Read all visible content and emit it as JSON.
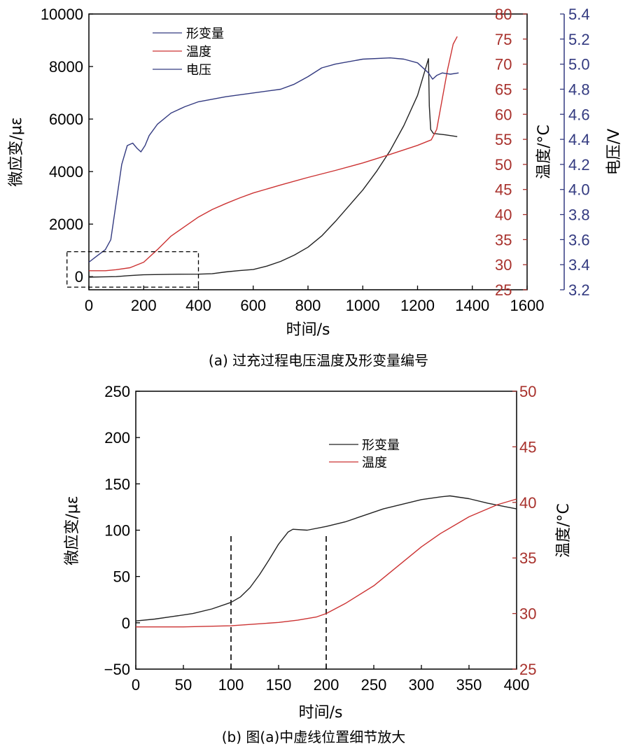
{
  "chart_data": [
    {
      "type": "line",
      "caption": "(a) 过充过程电压温度及形变量编号",
      "xlabel": "时间/s",
      "xlim": [
        0,
        1600
      ],
      "xticks": [
        0,
        200,
        400,
        600,
        800,
        1000,
        1200,
        1400,
        1600
      ],
      "y_left": {
        "label": "微应变/με",
        "lim": [
          -500,
          10000
        ],
        "ticks": [
          0,
          2000,
          4000,
          6000,
          8000,
          10000
        ],
        "color": "#000000"
      },
      "y_temp": {
        "label": "温度/°C",
        "lim": [
          25,
          80
        ],
        "ticks": [
          25,
          30,
          35,
          40,
          45,
          50,
          55,
          60,
          65,
          70,
          75,
          80
        ],
        "color": "#a8312c"
      },
      "y_volt": {
        "label": "电压/V",
        "lim": [
          3.2,
          5.4
        ],
        "ticks": [
          3.2,
          3.4,
          3.6,
          3.8,
          4.0,
          4.2,
          4.4,
          4.6,
          4.8,
          5.0,
          5.2,
          5.4
        ],
        "color": "#333a80"
      },
      "legend": [
        "形变量",
        "温度",
        "电压"
      ],
      "series": [
        {
          "name": "形变量",
          "axis": "strain",
          "color": "#222222",
          "points": [
            [
              0,
              -20
            ],
            [
              50,
              -10
            ],
            [
              100,
              0
            ],
            [
              150,
              40
            ],
            [
              200,
              70
            ],
            [
              300,
              90
            ],
            [
              400,
              95
            ],
            [
              450,
              110
            ],
            [
              500,
              180
            ],
            [
              550,
              230
            ],
            [
              600,
              270
            ],
            [
              650,
              400
            ],
            [
              700,
              580
            ],
            [
              750,
              820
            ],
            [
              800,
              1120
            ],
            [
              850,
              1550
            ],
            [
              900,
              2100
            ],
            [
              950,
              2700
            ],
            [
              1000,
              3300
            ],
            [
              1050,
              4000
            ],
            [
              1100,
              4800
            ],
            [
              1150,
              5750
            ],
            [
              1200,
              6900
            ],
            [
              1240,
              8300
            ],
            [
              1243,
              6500
            ],
            [
              1248,
              5600
            ],
            [
              1258,
              5450
            ],
            [
              1300,
              5400
            ],
            [
              1345,
              5330
            ]
          ]
        },
        {
          "name": "温度",
          "axis": "temp",
          "color": "#cc3333",
          "points": [
            [
              0,
              28.8
            ],
            [
              60,
              28.8
            ],
            [
              100,
              29
            ],
            [
              150,
              29.4
            ],
            [
              200,
              30.5
            ],
            [
              250,
              33
            ],
            [
              300,
              35.7
            ],
            [
              350,
              37.6
            ],
            [
              400,
              39.5
            ],
            [
              450,
              41
            ],
            [
              500,
              42.2
            ],
            [
              550,
              43.3
            ],
            [
              600,
              44.3
            ],
            [
              700,
              45.9
            ],
            [
              800,
              47.4
            ],
            [
              900,
              48.8
            ],
            [
              1000,
              50.3
            ],
            [
              1100,
              52
            ],
            [
              1200,
              53.8
            ],
            [
              1250,
              54.9
            ],
            [
              1270,
              57
            ],
            [
              1290,
              63
            ],
            [
              1310,
              69
            ],
            [
              1330,
              74
            ],
            [
              1345,
              75.5
            ]
          ]
        },
        {
          "name": "电压",
          "axis": "volt",
          "color": "#333a80",
          "points": [
            [
              0,
              3.42
            ],
            [
              30,
              3.47
            ],
            [
              60,
              3.52
            ],
            [
              80,
              3.6
            ],
            [
              100,
              3.9
            ],
            [
              120,
              4.2
            ],
            [
              140,
              4.35
            ],
            [
              160,
              4.37
            ],
            [
              175,
              4.33
            ],
            [
              190,
              4.3
            ],
            [
              205,
              4.35
            ],
            [
              220,
              4.43
            ],
            [
              250,
              4.52
            ],
            [
              300,
              4.61
            ],
            [
              350,
              4.66
            ],
            [
              400,
              4.7
            ],
            [
              500,
              4.74
            ],
            [
              600,
              4.77
            ],
            [
              700,
              4.8
            ],
            [
              750,
              4.84
            ],
            [
              800,
              4.9
            ],
            [
              850,
              4.97
            ],
            [
              900,
              5.0
            ],
            [
              1000,
              5.04
            ],
            [
              1100,
              5.05
            ],
            [
              1150,
              5.04
            ],
            [
              1200,
              5.01
            ],
            [
              1225,
              4.96
            ],
            [
              1240,
              4.93
            ],
            [
              1255,
              4.88
            ],
            [
              1270,
              4.91
            ],
            [
              1290,
              4.93
            ],
            [
              1320,
              4.92
            ],
            [
              1350,
              4.93
            ]
          ]
        }
      ],
      "inset_box": {
        "x": [
          -80,
          400
        ],
        "y": [
          -400,
          950
        ]
      }
    },
    {
      "type": "line",
      "caption": "(b) 图(a)中虚线位置细节放大",
      "xlabel": "时间/s",
      "xlim": [
        0,
        400
      ],
      "xticks": [
        0,
        50,
        100,
        150,
        200,
        250,
        300,
        350,
        400
      ],
      "y_left": {
        "label": "微应变/με",
        "lim": [
          -50,
          250
        ],
        "ticks": [
          -50,
          0,
          50,
          100,
          150,
          200,
          250
        ],
        "color": "#000000"
      },
      "y_temp": {
        "label": "温度/°C",
        "lim": [
          25,
          50
        ],
        "ticks": [
          25,
          30,
          35,
          40,
          45,
          50
        ],
        "color": "#a8312c"
      },
      "legend": [
        "形变量",
        "温度"
      ],
      "vlines": [
        {
          "x": 100,
          "y_top": 95
        },
        {
          "x": 200,
          "y_top": 97
        }
      ],
      "series": [
        {
          "name": "形变量",
          "axis": "strain",
          "color": "#222222",
          "points": [
            [
              0,
              2
            ],
            [
              20,
              4
            ],
            [
              40,
              7
            ],
            [
              60,
              10
            ],
            [
              80,
              15
            ],
            [
              100,
              22
            ],
            [
              110,
              28
            ],
            [
              120,
              38
            ],
            [
              130,
              52
            ],
            [
              140,
              68
            ],
            [
              150,
              85
            ],
            [
              160,
              98
            ],
            [
              165,
              101
            ],
            [
              180,
              100
            ],
            [
              200,
              104
            ],
            [
              220,
              109
            ],
            [
              240,
              116
            ],
            [
              260,
              123
            ],
            [
              280,
              128
            ],
            [
              300,
              133
            ],
            [
              320,
              136
            ],
            [
              330,
              137
            ],
            [
              350,
              134
            ],
            [
              370,
              129
            ],
            [
              390,
              125
            ],
            [
              400,
              123
            ]
          ]
        },
        {
          "name": "温度",
          "axis": "temp",
          "color": "#cc3333",
          "points": [
            [
              0,
              28.8
            ],
            [
              50,
              28.8
            ],
            [
              100,
              28.9
            ],
            [
              150,
              29.2
            ],
            [
              170,
              29.4
            ],
            [
              190,
              29.7
            ],
            [
              200,
              30
            ],
            [
              220,
              30.9
            ],
            [
              250,
              32.5
            ],
            [
              280,
              34.6
            ],
            [
              300,
              36
            ],
            [
              320,
              37.2
            ],
            [
              350,
              38.7
            ],
            [
              380,
              39.8
            ],
            [
              400,
              40.3
            ]
          ]
        }
      ]
    }
  ]
}
